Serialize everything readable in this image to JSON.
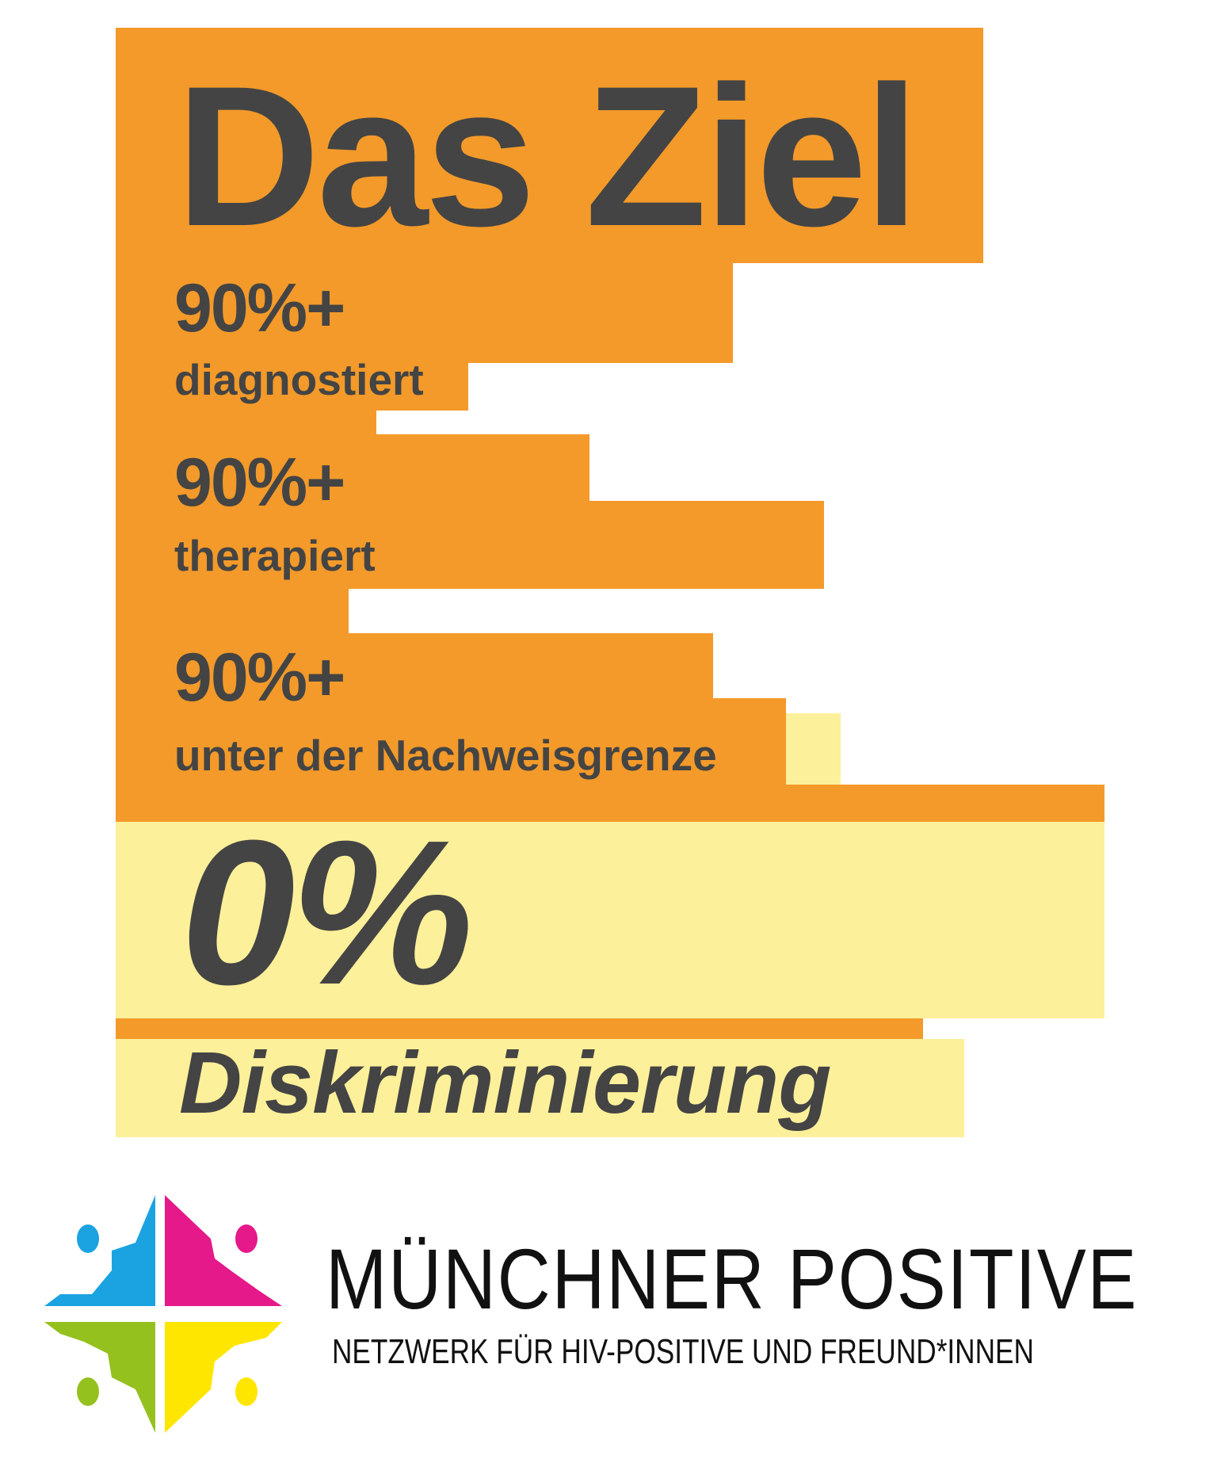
{
  "title": "Das Ziel",
  "goals": [
    {
      "value": "90%+",
      "label": "diagnostiert"
    },
    {
      "value": "90%+",
      "label": "therapiert"
    },
    {
      "value": "90%+",
      "label": "unter der Nachweisgrenze"
    }
  ],
  "discrimination": {
    "value": "0%",
    "label": "Diskriminierung"
  },
  "organization": {
    "name": "MÜNCHNER POSITIVE",
    "tagline": "NETZWERK FÜR HIV-POSITIVE UND FREUND*INNEN",
    "logo_colors": [
      "#1aa3e0",
      "#e5198a",
      "#95c11f",
      "#ffe600"
    ]
  },
  "colors": {
    "orange": "#f39a2a",
    "yellow": "#fdf09a",
    "text": "#444444"
  }
}
